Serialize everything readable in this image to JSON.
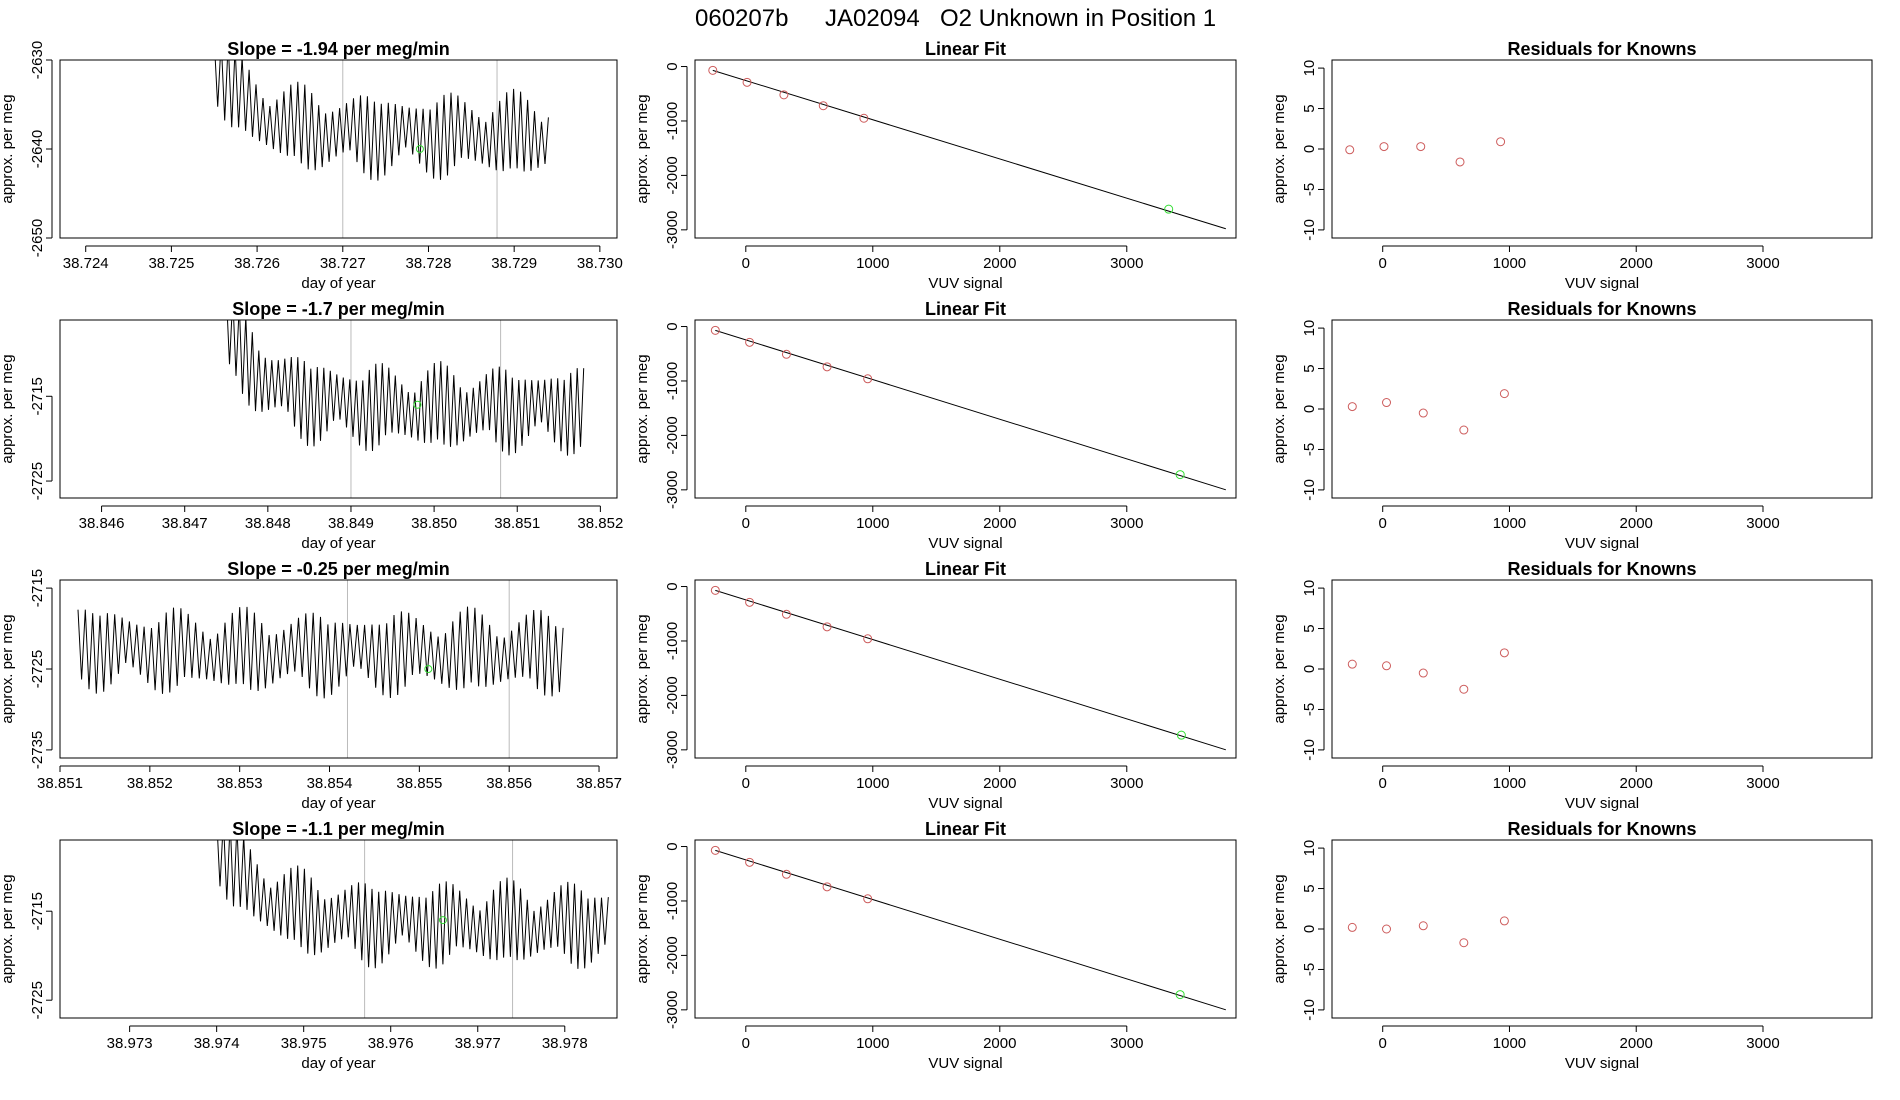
{
  "page_title": {
    "run": "060207b",
    "tank": "JA02094",
    "description": "O2 Unknown in Position  1"
  },
  "colors": {
    "trace": "#000000",
    "fit_line": "#000000",
    "known_points": "#cd5c5c",
    "unknown_point": "#33dd33",
    "marker_lines": "#bbbbbb",
    "frame": "#000000"
  },
  "chart_data": [
    {
      "type": "line",
      "row": 1,
      "title": "Slope =  -1.94  per meg/min",
      "xlabel": "day of year",
      "ylabel": "approx. per meg",
      "xlim": [
        38.7237,
        38.7302
      ],
      "ylim": [
        -2650,
        -2630
      ],
      "x_ticks": [
        38.724,
        38.725,
        38.726,
        38.727,
        38.728,
        38.729,
        38.73
      ],
      "x_tick_labels": [
        "38.724",
        "38.725",
        "38.726",
        "38.727",
        "38.728",
        "38.729",
        "38.730"
      ],
      "y_ticks": [
        -2650,
        -2640,
        -2630
      ],
      "trace": {
        "start": 38.7255,
        "end": 38.7294,
        "start_level": -2630,
        "level": -2638.5,
        "amplitude": 4.2,
        "cycles": 48
      },
      "markers": [
        38.727,
        38.7288
      ],
      "unknown_point": {
        "x": 38.7279,
        "y": -2640
      }
    },
    {
      "type": "scatter",
      "row": 1,
      "title": "Linear Fit",
      "xlabel": "VUV signal",
      "ylabel": "approx. per meg",
      "xlim": [
        -400,
        3860
      ],
      "ylim": [
        -3150,
        120
      ],
      "x_ticks": [
        0,
        1000,
        2000,
        3000
      ],
      "y_ticks": [
        0,
        -1000,
        -2000,
        -3000
      ],
      "y_tick_labels": [
        "0",
        "-1000",
        "-2000",
        "-3000"
      ],
      "known_x": [
        -260,
        10,
        300,
        610,
        930
      ],
      "known_y": [
        -70,
        -290,
        -520,
        -720,
        -950
      ],
      "unknown_point": {
        "x": 3330,
        "y": -2620
      },
      "fit_line": {
        "x": [
          -260,
          3780
        ],
        "y": [
          -70,
          -2980
        ]
      }
    },
    {
      "type": "scatter",
      "row": 1,
      "title": "Residuals for Knowns",
      "xlabel": "VUV signal",
      "ylabel": "approx. per meg",
      "xlim": [
        -400,
        3860
      ],
      "ylim": [
        -11,
        11
      ],
      "x_ticks": [
        0,
        1000,
        2000,
        3000
      ],
      "y_ticks": [
        10,
        5,
        0,
        -5,
        -10
      ],
      "residual_x": [
        -260,
        10,
        300,
        610,
        930
      ],
      "residual_y": [
        -0.1,
        0.3,
        0.3,
        -1.6,
        0.9
      ]
    },
    {
      "type": "line",
      "row": 2,
      "title": "Slope =  -1.7  per meg/min",
      "xlabel": "day of year",
      "ylabel": "approx. per meg",
      "xlim": [
        38.8455,
        38.8522
      ],
      "ylim": [
        -2727,
        -2706
      ],
      "x_ticks": [
        38.846,
        38.847,
        38.848,
        38.849,
        38.85,
        38.851,
        38.852
      ],
      "x_tick_labels": [
        "38.846",
        "38.847",
        "38.848",
        "38.849",
        "38.850",
        "38.851",
        "38.852"
      ],
      "y_ticks": [
        -2725,
        -2715
      ],
      "trace": {
        "start": 38.8475,
        "end": 38.8518,
        "start_level": -2707,
        "level": -2716.5,
        "amplitude": 4.5,
        "cycles": 55
      },
      "markers": [
        38.849,
        38.8508
      ],
      "unknown_point": {
        "x": 38.8498,
        "y": -2716
      }
    },
    {
      "type": "scatter",
      "row": 2,
      "title": "Linear Fit",
      "xlabel": "VUV signal",
      "ylabel": "approx. per meg",
      "xlim": [
        -400,
        3860
      ],
      "ylim": [
        -3150,
        120
      ],
      "x_ticks": [
        0,
        1000,
        2000,
        3000
      ],
      "y_ticks": [
        0,
        -1000,
        -2000,
        -3000
      ],
      "y_tick_labels": [
        "0",
        "-1000",
        "-2000",
        "-3000"
      ],
      "known_x": [
        -240,
        30,
        320,
        640,
        960
      ],
      "known_y": [
        -70,
        -290,
        -510,
        -740,
        -960
      ],
      "unknown_point": {
        "x": 3420,
        "y": -2720
      },
      "fit_line": {
        "x": [
          -240,
          3780
        ],
        "y": [
          -70,
          -3000
        ]
      }
    },
    {
      "type": "scatter",
      "row": 2,
      "title": "Residuals for Knowns",
      "xlabel": "VUV signal",
      "ylabel": "approx. per meg",
      "xlim": [
        -400,
        3860
      ],
      "ylim": [
        -11,
        11
      ],
      "x_ticks": [
        0,
        1000,
        2000,
        3000
      ],
      "y_ticks": [
        10,
        5,
        0,
        -5,
        -10
      ],
      "residual_x": [
        -240,
        30,
        320,
        640,
        960
      ],
      "residual_y": [
        0.3,
        0.8,
        -0.5,
        -2.6,
        1.9
      ]
    },
    {
      "type": "line",
      "row": 3,
      "title": "Slope =  -0.25  per meg/min",
      "xlabel": "day of year",
      "ylabel": "approx. per meg",
      "xlim": [
        38.851,
        38.8572
      ],
      "ylim": [
        -2736,
        -2714
      ],
      "x_ticks": [
        38.851,
        38.852,
        38.853,
        38.854,
        38.855,
        38.856,
        38.857
      ],
      "x_tick_labels": [
        "38.851",
        "38.852",
        "38.853",
        "38.854",
        "38.855",
        "38.856",
        "38.857"
      ],
      "y_ticks": [
        -2735,
        -2725,
        -2715
      ],
      "trace": {
        "start": 38.8512,
        "end": 38.8566,
        "start_level": -2722,
        "level": -2723,
        "amplitude": 4.6,
        "cycles": 66
      },
      "markers": [
        38.8542,
        38.856
      ],
      "unknown_point": {
        "x": 38.8551,
        "y": -2725
      }
    },
    {
      "type": "scatter",
      "row": 3,
      "title": "Linear Fit",
      "xlabel": "VUV signal",
      "ylabel": "approx. per meg",
      "xlim": [
        -400,
        3860
      ],
      "ylim": [
        -3150,
        120
      ],
      "x_ticks": [
        0,
        1000,
        2000,
        3000
      ],
      "y_ticks": [
        0,
        -1000,
        -2000,
        -3000
      ],
      "y_tick_labels": [
        "0",
        "-1000",
        "-2000",
        "-3000"
      ],
      "known_x": [
        -240,
        30,
        320,
        640,
        960
      ],
      "known_y": [
        -70,
        -290,
        -510,
        -740,
        -960
      ],
      "unknown_point": {
        "x": 3430,
        "y": -2730
      },
      "fit_line": {
        "x": [
          -240,
          3780
        ],
        "y": [
          -70,
          -3000
        ]
      }
    },
    {
      "type": "scatter",
      "row": 3,
      "title": "Residuals for Knowns",
      "xlabel": "VUV signal",
      "ylabel": "approx. per meg",
      "xlim": [
        -400,
        3860
      ],
      "ylim": [
        -11,
        11
      ],
      "x_ticks": [
        0,
        1000,
        2000,
        3000
      ],
      "y_ticks": [
        10,
        5,
        0,
        -5,
        -10
      ],
      "residual_x": [
        -240,
        30,
        320,
        640,
        960
      ],
      "residual_y": [
        0.6,
        0.4,
        -0.5,
        -2.5,
        2.0
      ]
    },
    {
      "type": "line",
      "row": 4,
      "title": "Slope =  -1.1  per meg/min",
      "xlabel": "day of year",
      "ylabel": "approx. per meg",
      "xlim": [
        38.9722,
        38.9786
      ],
      "ylim": [
        -2727,
        -2707
      ],
      "x_ticks": [
        38.973,
        38.974,
        38.975,
        38.976,
        38.977,
        38.978
      ],
      "x_tick_labels": [
        "38.973",
        "38.974",
        "38.975",
        "38.976",
        "38.977",
        "38.978"
      ],
      "y_ticks": [
        -2725,
        -2715
      ],
      "trace": {
        "start": 38.974,
        "end": 38.9785,
        "start_level": -2707,
        "level": -2716.5,
        "amplitude": 4.2,
        "cycles": 58
      },
      "markers": [
        38.9757,
        38.9774
      ],
      "unknown_point": {
        "x": 38.9766,
        "y": -2716
      }
    },
    {
      "type": "scatter",
      "row": 4,
      "title": "Linear Fit",
      "xlabel": "VUV signal",
      "ylabel": "approx. per meg",
      "xlim": [
        -400,
        3860
      ],
      "ylim": [
        -3150,
        120
      ],
      "x_ticks": [
        0,
        1000,
        2000,
        3000
      ],
      "y_ticks": [
        0,
        -1000,
        -2000,
        -3000
      ],
      "y_tick_labels": [
        "0",
        "-1000",
        "-2000",
        "-3000"
      ],
      "known_x": [
        -240,
        30,
        320,
        640,
        960
      ],
      "known_y": [
        -70,
        -290,
        -510,
        -740,
        -960
      ],
      "unknown_point": {
        "x": 3420,
        "y": -2720
      },
      "fit_line": {
        "x": [
          -240,
          3780
        ],
        "y": [
          -70,
          -3000
        ]
      }
    },
    {
      "type": "scatter",
      "row": 4,
      "title": "Residuals for Knowns",
      "xlabel": "VUV signal",
      "ylabel": "approx. per meg",
      "xlim": [
        -400,
        3860
      ],
      "ylim": [
        -11,
        11
      ],
      "x_ticks": [
        0,
        1000,
        2000,
        3000
      ],
      "y_ticks": [
        10,
        5,
        0,
        -5,
        -10
      ],
      "residual_x": [
        -240,
        30,
        320,
        640,
        960
      ],
      "residual_y": [
        0.2,
        0.0,
        0.4,
        -1.7,
        1.0
      ]
    }
  ]
}
